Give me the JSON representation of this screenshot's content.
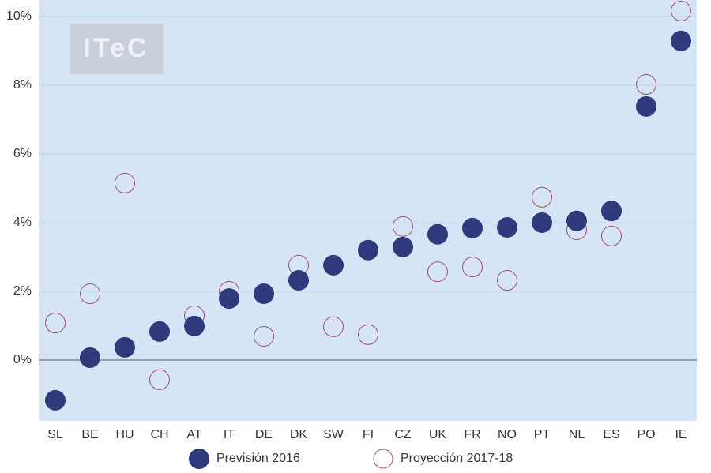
{
  "chart_data": {
    "type": "scatter",
    "watermark": "ITeC",
    "categories": [
      "SL",
      "BE",
      "HU",
      "CH",
      "AT",
      "IT",
      "DE",
      "DK",
      "SW",
      "FI",
      "CZ",
      "UK",
      "FR",
      "NO",
      "PT",
      "NL",
      "ES",
      "PO",
      "IE"
    ],
    "series": [
      {
        "name": "Previsión 2016",
        "color": "#2e3a7c",
        "marker": "filled",
        "values": [
          -1.17,
          0.07,
          0.37,
          0.83,
          0.99,
          1.79,
          1.93,
          2.32,
          2.76,
          3.2,
          3.29,
          3.66,
          3.84,
          3.86,
          4.0,
          4.05,
          4.34,
          7.38,
          9.29
        ]
      },
      {
        "name": "Proyección 2017-18",
        "color": "#a0506e",
        "marker": "open",
        "values": [
          1.08,
          1.93,
          5.15,
          -0.57,
          1.29,
          2.0,
          0.69,
          2.76,
          0.97,
          0.74,
          3.89,
          2.57,
          2.71,
          2.32,
          4.74,
          3.79,
          3.61,
          8.02,
          10.16
        ]
      }
    ],
    "ylim": [
      -1.77,
      10.48
    ],
    "yticks": [
      {
        "value": 0,
        "label": "0%"
      },
      {
        "value": 2,
        "label": "2%"
      },
      {
        "value": 4,
        "label": "4%"
      },
      {
        "value": 6,
        "label": "6%"
      },
      {
        "value": 8,
        "label": "8%"
      },
      {
        "value": 10,
        "label": "10%"
      }
    ],
    "grid": true
  }
}
